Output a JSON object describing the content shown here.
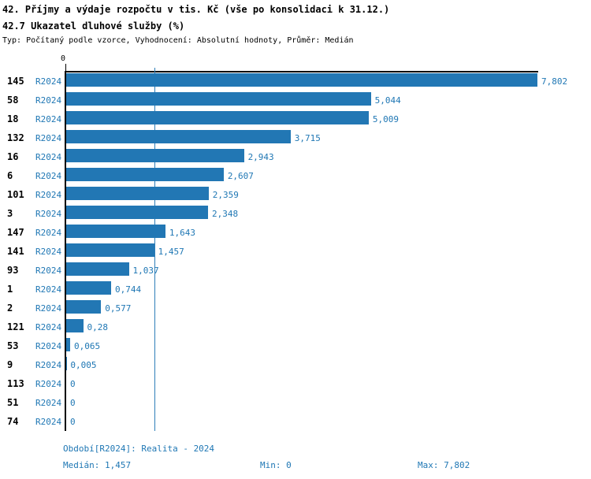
{
  "header": {
    "title_line1": "42. Příjmy a výdaje rozpočtu v tis. Kč (vše po konsolidaci k 31.12.)",
    "title_line2": "42.7 Ukazatel dluhové služby (%)",
    "subtitle": "Typ: Počítaný podle vzorce, Vyhodnocení: Absolutní hodnoty, Průměr: Medián"
  },
  "colors": {
    "bar": "#2277b4",
    "blue_text": "#1f77b4",
    "median_line": "#2e7fb8",
    "axis": "#000000"
  },
  "chart_data": {
    "type": "bar",
    "orientation": "horizontal",
    "title": "42.7 Ukazatel dluhové služby (%)",
    "series_label": "R2024",
    "categories": [
      "145",
      "58",
      "18",
      "132",
      "16",
      "6",
      "101",
      "3",
      "147",
      "141",
      "93",
      "1",
      "2",
      "121",
      "53",
      "9",
      "113",
      "51",
      "74"
    ],
    "values": [
      7.802,
      5.044,
      5.009,
      3.715,
      2.943,
      2.607,
      2.359,
      2.348,
      1.643,
      1.457,
      1.037,
      0.744,
      0.577,
      0.28,
      0.065,
      0.005,
      0,
      0,
      0
    ],
    "value_labels": [
      "7,802",
      "5,044",
      "5,009",
      "3,715",
      "2,943",
      "2,607",
      "2,359",
      "2,348",
      "1,643",
      "1,457",
      "1,037",
      "0,744",
      "0,577",
      "0,28",
      "0,065",
      "0,005",
      "0",
      "0",
      "0"
    ],
    "xlim": [
      0,
      7.802
    ],
    "x_axis_tick_labels": [
      "0"
    ],
    "median": 1.457,
    "median_label": "1,457",
    "grid": "median-line-only",
    "legend_position": "none"
  },
  "axis": {
    "zero_label": "0"
  },
  "footer": {
    "period": "Období[R2024]: Realita - 2024",
    "median": "Medián: 1,457",
    "min": "Min: 0",
    "max": "Max: 7,802"
  }
}
